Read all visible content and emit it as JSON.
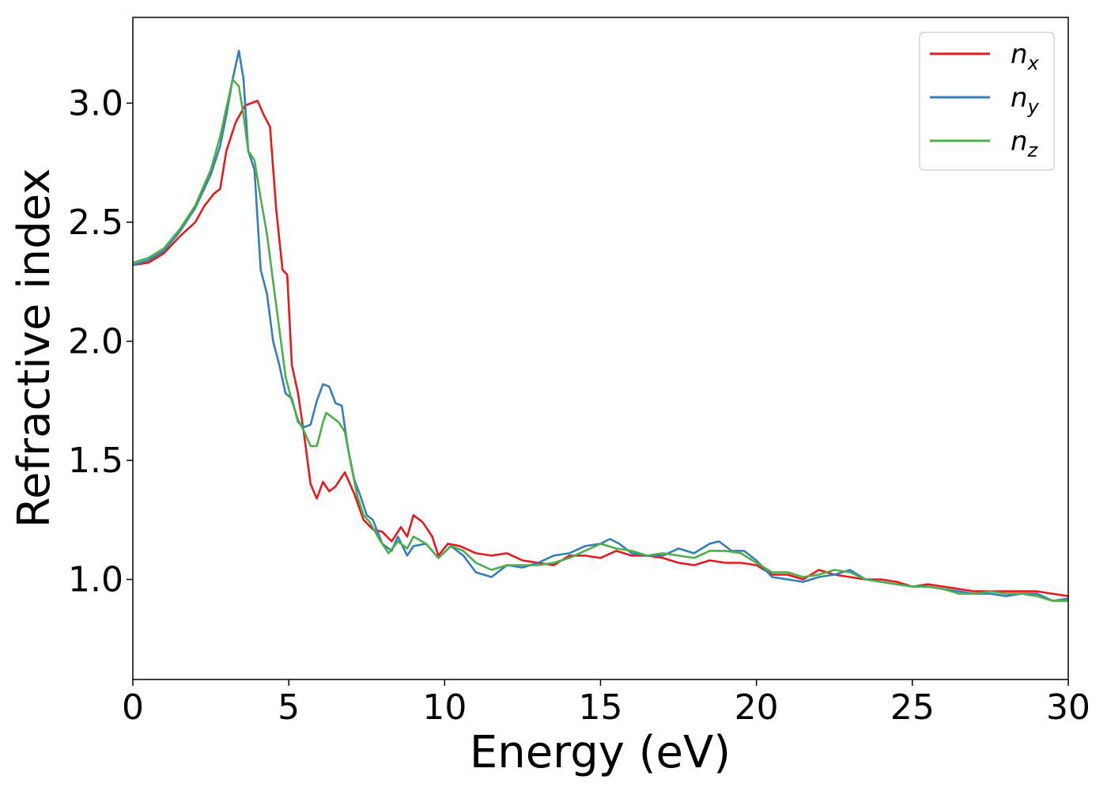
{
  "chart_data": {
    "type": "line",
    "title": "",
    "xlabel": "Energy (eV)",
    "ylabel": "Refractive index",
    "xlim": [
      0,
      30
    ],
    "ylim": [
      0.58,
      3.36
    ],
    "xticks": [
      0,
      5,
      10,
      15,
      20,
      25,
      30
    ],
    "xtick_labels": [
      "0",
      "5",
      "10",
      "15",
      "20",
      "25",
      "30"
    ],
    "yticks": [
      1.0,
      1.5,
      2.0,
      2.5,
      3.0
    ],
    "ytick_labels": [
      "1.0",
      "1.5",
      "2.0",
      "2.5",
      "3.0"
    ],
    "grid": false,
    "legend_position": "top-right",
    "series": [
      {
        "name": "n_x",
        "legend_base": "n",
        "legend_sub": "x",
        "color": "#e41a1c",
        "points": [
          [
            0,
            2.32
          ],
          [
            0.5,
            2.33
          ],
          [
            1,
            2.37
          ],
          [
            1.5,
            2.44
          ],
          [
            2,
            2.5
          ],
          [
            2.3,
            2.57
          ],
          [
            2.6,
            2.62
          ],
          [
            2.8,
            2.64
          ],
          [
            3.0,
            2.8
          ],
          [
            3.3,
            2.92
          ],
          [
            3.6,
            2.99
          ],
          [
            3.8,
            3.0
          ],
          [
            4.0,
            3.01
          ],
          [
            4.2,
            2.95
          ],
          [
            4.4,
            2.9
          ],
          [
            4.6,
            2.55
          ],
          [
            4.8,
            2.3
          ],
          [
            4.95,
            2.28
          ],
          [
            5.1,
            1.9
          ],
          [
            5.3,
            1.78
          ],
          [
            5.5,
            1.6
          ],
          [
            5.7,
            1.4
          ],
          [
            5.9,
            1.34
          ],
          [
            6.1,
            1.41
          ],
          [
            6.3,
            1.37
          ],
          [
            6.5,
            1.39
          ],
          [
            6.8,
            1.45
          ],
          [
            7.1,
            1.36
          ],
          [
            7.4,
            1.25
          ],
          [
            7.7,
            1.21
          ],
          [
            8.0,
            1.2
          ],
          [
            8.3,
            1.16
          ],
          [
            8.6,
            1.22
          ],
          [
            8.8,
            1.18
          ],
          [
            9.0,
            1.27
          ],
          [
            9.3,
            1.24
          ],
          [
            9.6,
            1.18
          ],
          [
            9.8,
            1.1
          ],
          [
            10.1,
            1.15
          ],
          [
            10.5,
            1.14
          ],
          [
            11,
            1.11
          ],
          [
            11.5,
            1.1
          ],
          [
            12,
            1.11
          ],
          [
            12.5,
            1.08
          ],
          [
            13,
            1.07
          ],
          [
            13.5,
            1.06
          ],
          [
            14,
            1.1
          ],
          [
            14.5,
            1.1
          ],
          [
            15,
            1.09
          ],
          [
            15.5,
            1.12
          ],
          [
            16,
            1.1
          ],
          [
            16.5,
            1.1
          ],
          [
            17,
            1.09
          ],
          [
            17.5,
            1.07
          ],
          [
            18,
            1.06
          ],
          [
            18.5,
            1.08
          ],
          [
            19,
            1.07
          ],
          [
            19.5,
            1.07
          ],
          [
            20,
            1.06
          ],
          [
            20.5,
            1.02
          ],
          [
            21,
            1.02
          ],
          [
            21.5,
            1.0
          ],
          [
            22,
            1.04
          ],
          [
            22.5,
            1.02
          ],
          [
            23,
            1.01
          ],
          [
            23.5,
            1.0
          ],
          [
            24,
            1.0
          ],
          [
            24.5,
            0.99
          ],
          [
            25,
            0.97
          ],
          [
            25.5,
            0.98
          ],
          [
            26,
            0.97
          ],
          [
            26.5,
            0.96
          ],
          [
            27,
            0.95
          ],
          [
            27.5,
            0.95
          ],
          [
            28,
            0.95
          ],
          [
            28.5,
            0.95
          ],
          [
            29,
            0.95
          ],
          [
            29.5,
            0.94
          ],
          [
            30,
            0.93
          ]
        ]
      },
      {
        "name": "n_y",
        "legend_base": "n",
        "legend_sub": "y",
        "color": "#377eb8",
        "points": [
          [
            0,
            2.32
          ],
          [
            0.5,
            2.34
          ],
          [
            1,
            2.38
          ],
          [
            1.5,
            2.46
          ],
          [
            2,
            2.56
          ],
          [
            2.5,
            2.7
          ],
          [
            2.8,
            2.82
          ],
          [
            3.0,
            2.95
          ],
          [
            3.2,
            3.1
          ],
          [
            3.4,
            3.22
          ],
          [
            3.55,
            3.1
          ],
          [
            3.7,
            2.8
          ],
          [
            3.9,
            2.72
          ],
          [
            4.1,
            2.3
          ],
          [
            4.3,
            2.2
          ],
          [
            4.5,
            2.0
          ],
          [
            4.7,
            1.9
          ],
          [
            4.9,
            1.78
          ],
          [
            5.1,
            1.76
          ],
          [
            5.3,
            1.66
          ],
          [
            5.5,
            1.64
          ],
          [
            5.7,
            1.65
          ],
          [
            5.9,
            1.75
          ],
          [
            6.1,
            1.82
          ],
          [
            6.3,
            1.81
          ],
          [
            6.5,
            1.74
          ],
          [
            6.7,
            1.73
          ],
          [
            6.9,
            1.55
          ],
          [
            7.1,
            1.42
          ],
          [
            7.3,
            1.35
          ],
          [
            7.5,
            1.27
          ],
          [
            7.7,
            1.25
          ],
          [
            8.0,
            1.15
          ],
          [
            8.3,
            1.12
          ],
          [
            8.5,
            1.18
          ],
          [
            8.8,
            1.1
          ],
          [
            9.0,
            1.14
          ],
          [
            9.4,
            1.15
          ],
          [
            9.8,
            1.09
          ],
          [
            10.2,
            1.14
          ],
          [
            10.6,
            1.1
          ],
          [
            11.0,
            1.03
          ],
          [
            11.5,
            1.01
          ],
          [
            12.0,
            1.06
          ],
          [
            12.5,
            1.05
          ],
          [
            13.0,
            1.07
          ],
          [
            13.5,
            1.1
          ],
          [
            14.0,
            1.11
          ],
          [
            14.5,
            1.14
          ],
          [
            15.0,
            1.15
          ],
          [
            15.3,
            1.17
          ],
          [
            15.6,
            1.15
          ],
          [
            16.0,
            1.11
          ],
          [
            16.5,
            1.1
          ],
          [
            17.0,
            1.1
          ],
          [
            17.5,
            1.13
          ],
          [
            18.0,
            1.11
          ],
          [
            18.5,
            1.15
          ],
          [
            18.8,
            1.16
          ],
          [
            19.2,
            1.12
          ],
          [
            19.6,
            1.12
          ],
          [
            20.0,
            1.08
          ],
          [
            20.5,
            1.01
          ],
          [
            21.0,
            1.0
          ],
          [
            21.5,
            0.99
          ],
          [
            22.0,
            1.01
          ],
          [
            22.5,
            1.02
          ],
          [
            23.0,
            1.04
          ],
          [
            23.5,
            1.0
          ],
          [
            24.0,
            0.99
          ],
          [
            24.5,
            0.98
          ],
          [
            25.0,
            0.97
          ],
          [
            25.5,
            0.97
          ],
          [
            26.0,
            0.96
          ],
          [
            26.5,
            0.95
          ],
          [
            27.0,
            0.94
          ],
          [
            27.5,
            0.94
          ],
          [
            28.0,
            0.93
          ],
          [
            28.5,
            0.94
          ],
          [
            29.0,
            0.94
          ],
          [
            29.5,
            0.91
          ],
          [
            30,
            0.92
          ]
        ]
      },
      {
        "name": "n_z",
        "legend_base": "n",
        "legend_sub": "z",
        "color": "#4daf4a",
        "points": [
          [
            0,
            2.33
          ],
          [
            0.5,
            2.35
          ],
          [
            1,
            2.39
          ],
          [
            1.5,
            2.47
          ],
          [
            2,
            2.57
          ],
          [
            2.5,
            2.72
          ],
          [
            2.8,
            2.86
          ],
          [
            3.0,
            2.98
          ],
          [
            3.2,
            3.1
          ],
          [
            3.4,
            3.07
          ],
          [
            3.55,
            2.95
          ],
          [
            3.7,
            2.8
          ],
          [
            3.9,
            2.76
          ],
          [
            4.1,
            2.6
          ],
          [
            4.3,
            2.45
          ],
          [
            4.5,
            2.25
          ],
          [
            4.7,
            2.05
          ],
          [
            4.9,
            1.85
          ],
          [
            5.1,
            1.75
          ],
          [
            5.3,
            1.67
          ],
          [
            5.5,
            1.62
          ],
          [
            5.7,
            1.56
          ],
          [
            5.9,
            1.56
          ],
          [
            6.1,
            1.66
          ],
          [
            6.2,
            1.7
          ],
          [
            6.4,
            1.68
          ],
          [
            6.6,
            1.66
          ],
          [
            6.8,
            1.62
          ],
          [
            7.0,
            1.48
          ],
          [
            7.2,
            1.35
          ],
          [
            7.4,
            1.27
          ],
          [
            7.6,
            1.24
          ],
          [
            7.9,
            1.17
          ],
          [
            8.2,
            1.11
          ],
          [
            8.5,
            1.16
          ],
          [
            8.8,
            1.13
          ],
          [
            9.0,
            1.18
          ],
          [
            9.4,
            1.15
          ],
          [
            9.8,
            1.09
          ],
          [
            10.2,
            1.14
          ],
          [
            10.6,
            1.12
          ],
          [
            11.0,
            1.07
          ],
          [
            11.5,
            1.04
          ],
          [
            12.0,
            1.06
          ],
          [
            12.5,
            1.06
          ],
          [
            13.0,
            1.06
          ],
          [
            13.5,
            1.07
          ],
          [
            14.0,
            1.09
          ],
          [
            14.5,
            1.12
          ],
          [
            15.0,
            1.15
          ],
          [
            15.5,
            1.13
          ],
          [
            16.0,
            1.12
          ],
          [
            16.5,
            1.1
          ],
          [
            17.0,
            1.11
          ],
          [
            17.5,
            1.1
          ],
          [
            18.0,
            1.09
          ],
          [
            18.5,
            1.12
          ],
          [
            19.0,
            1.12
          ],
          [
            19.5,
            1.11
          ],
          [
            20.0,
            1.07
          ],
          [
            20.5,
            1.03
          ],
          [
            21.0,
            1.03
          ],
          [
            21.5,
            1.01
          ],
          [
            22.0,
            1.02
          ],
          [
            22.5,
            1.04
          ],
          [
            23.0,
            1.03
          ],
          [
            23.5,
            1.0
          ],
          [
            24.0,
            0.99
          ],
          [
            24.5,
            0.98
          ],
          [
            25.0,
            0.97
          ],
          [
            25.5,
            0.97
          ],
          [
            26.0,
            0.96
          ],
          [
            26.5,
            0.94
          ],
          [
            27.0,
            0.94
          ],
          [
            27.5,
            0.95
          ],
          [
            28.0,
            0.94
          ],
          [
            28.5,
            0.94
          ],
          [
            29.0,
            0.93
          ],
          [
            29.5,
            0.91
          ],
          [
            30,
            0.91
          ]
        ]
      }
    ]
  }
}
